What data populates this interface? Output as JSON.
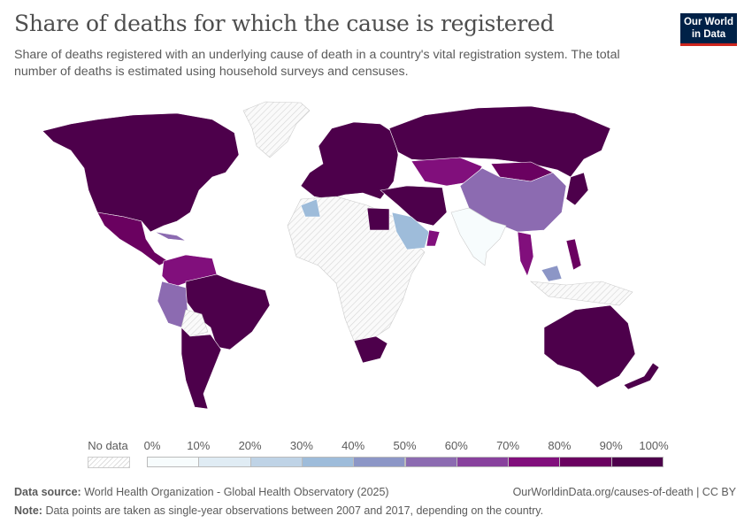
{
  "title": "Share of deaths for which the cause is registered",
  "subtitle": "Share of deaths registered with an underlying cause of death in a country's vital registration system. The total number of deaths is estimated using household surveys and censuses.",
  "logo": {
    "line1": "Our World",
    "line2": "in Data"
  },
  "legend": {
    "no_data_label": "No data",
    "ticks": [
      "0%",
      "10%",
      "20%",
      "30%",
      "40%",
      "50%",
      "60%",
      "70%",
      "80%",
      "90%",
      "100%"
    ],
    "colors": [
      "#f7fcfd",
      "#e0ecf4",
      "#bfd3e6",
      "#9ebcda",
      "#8c96c6",
      "#8c6bb1",
      "#88419d",
      "#810f7c",
      "#6a0160",
      "#4d004b"
    ],
    "no_data_color": "hatched-gray"
  },
  "footer": {
    "source_label": "Data source:",
    "source": "World Health Organization - Global Health Observatory (2025)",
    "url": "OurWorldinData.org/causes-of-death | CC BY",
    "note_label": "Note:",
    "note": "Data points are taken as single-year observations between 2007 and 2017, depending on the country."
  }
}
